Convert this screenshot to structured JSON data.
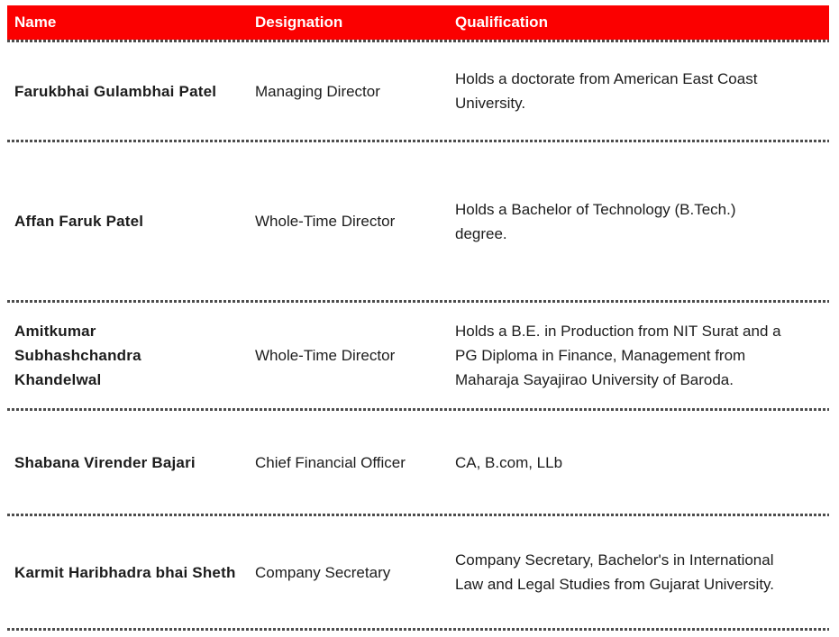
{
  "colors": {
    "header_bg": "#FB0000",
    "header_text": "#FFFFFF",
    "body_text": "#1C1C1C",
    "separator": "#4D4D4D"
  },
  "table": {
    "headers": {
      "name": "Name",
      "designation": "Designation",
      "qualification": "Qualification"
    },
    "rows": [
      {
        "name": "Farukbhai Gulambhai Patel",
        "designation": "Managing Director",
        "qualification": "Holds a doctorate from American East Coast\nUniversity."
      },
      {
        "name": "Affan Faruk Patel",
        "designation": "Whole-Time Director",
        "qualification": "Holds a Bachelor of Technology (B.Tech.)\ndegree."
      },
      {
        "name": "Amitkumar\nSubhashchandra\nKhandelwal",
        "designation": "Whole-Time Director",
        "qualification": "Holds a B.E. in Production from NIT Surat and a\nPG Diploma in Finance, Management from\nMaharaja Sayajirao University of Baroda."
      },
      {
        "name": "Shabana Virender Bajari",
        "designation": "Chief Financial Officer",
        "qualification": "CA, B.com, LLb"
      },
      {
        "name": "Karmit Haribhadra bhai Sheth",
        "designation": "Company Secretary",
        "qualification": "Company Secretary, Bachelor's in International\nLaw and Legal Studies from Gujarat University."
      }
    ]
  }
}
